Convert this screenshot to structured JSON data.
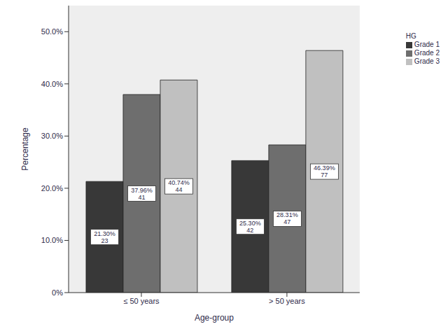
{
  "chart_data": {
    "type": "bar",
    "x_label": "Age-group",
    "y_label": "Percentage",
    "legend_title": "HG",
    "categories": [
      "≤ 50 years",
      "> 50 years"
    ],
    "series": [
      {
        "name": "Grade 1",
        "color": "#383838",
        "values": [
          21.3,
          25.3
        ],
        "value_labels": [
          "21.30%",
          "25.30%"
        ],
        "counts": [
          23,
          42
        ]
      },
      {
        "name": "Grade 2",
        "color": "#6e6e6e",
        "values": [
          37.96,
          28.31
        ],
        "value_labels": [
          "37.96%",
          "28.31%"
        ],
        "counts": [
          41,
          47
        ]
      },
      {
        "name": "Grade 3",
        "color": "#c0c0c0",
        "values": [
          40.74,
          46.39
        ],
        "value_labels": [
          "40.74%",
          "46.39%"
        ],
        "counts": [
          44,
          77
        ]
      }
    ],
    "ylim": [
      0,
      55
    ],
    "yticks": [
      {
        "value": 0,
        "label": "0%"
      },
      {
        "value": 10,
        "label": "10.0%"
      },
      {
        "value": 20,
        "label": "20.0%"
      },
      {
        "value": 30,
        "label": "30.0%"
      },
      {
        "value": 40,
        "label": "40.0%"
      },
      {
        "value": 50,
        "label": "50.0%"
      }
    ],
    "grid": false,
    "legend": "upper right",
    "data_labels": true
  }
}
